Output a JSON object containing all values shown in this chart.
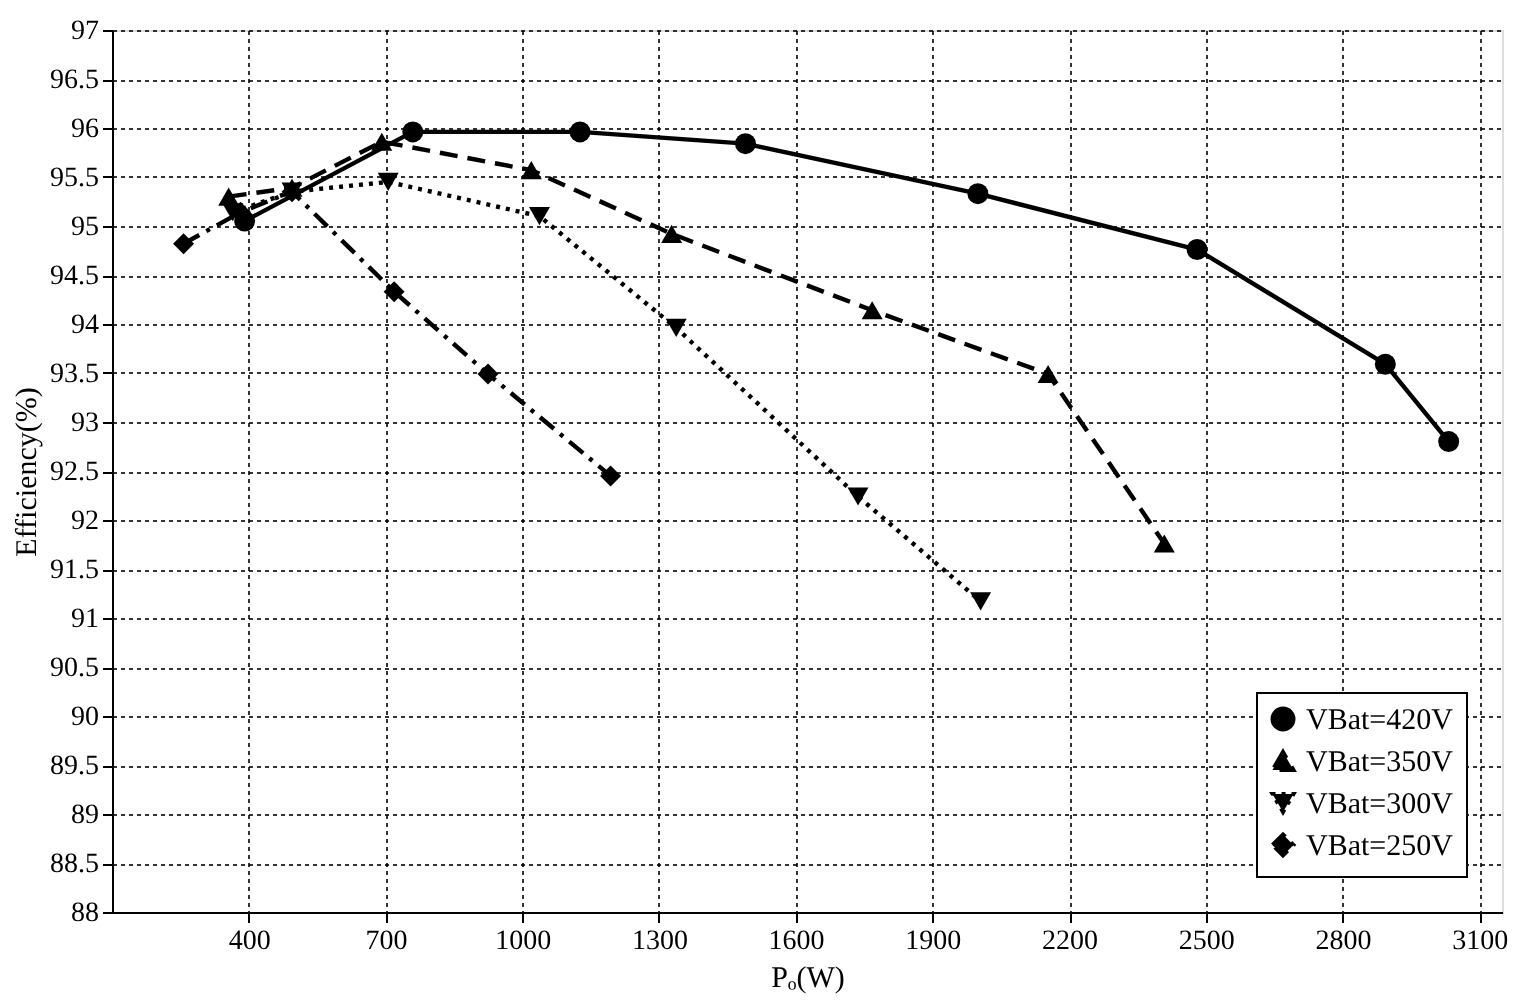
{
  "chart_data": {
    "type": "line",
    "xlabel": "Pₒ(W)",
    "ylabel": "Efficiency(%)",
    "xlim": [
      100,
      3150
    ],
    "xticks": [
      400,
      700,
      1000,
      1300,
      1600,
      1900,
      2200,
      2500,
      2800,
      3100
    ],
    "ylim": [
      88,
      97
    ],
    "yticks": [
      88,
      88.5,
      89,
      89.5,
      90,
      90.5,
      91,
      91.5,
      92,
      92.5,
      93,
      93.5,
      94,
      94.5,
      95,
      95.5,
      96,
      96.5,
      97
    ],
    "grid": true,
    "legend": "bottom right",
    "series": [
      {
        "name": "VBat=420V",
        "color": "#000000",
        "marker": "circle",
        "line_style": "solid",
        "x": [
          391,
          760,
          1127,
          1490,
          2000,
          2481,
          2894,
          3033
        ],
        "values": [
          95.05,
          95.96,
          95.96,
          95.84,
          95.33,
          94.76,
          93.59,
          92.8
        ]
      },
      {
        "name": "VBat=350V",
        "color": "#000000",
        "marker": "triangle",
        "line_style": "dashed",
        "x": [
          356,
          495,
          692,
          1020,
          1328,
          1768,
          2154,
          2409
        ],
        "values": [
          95.3,
          95.39,
          95.86,
          95.57,
          94.92,
          94.14,
          93.49,
          91.76
        ]
      },
      {
        "name": "VBat=300V",
        "color": "#000000",
        "marker": "triangle-down",
        "line_style": "dotted",
        "x": [
          365,
          495,
          706,
          1038,
          1338,
          1737,
          2006
        ],
        "values": [
          95.14,
          95.35,
          95.45,
          95.1,
          93.96,
          92.24,
          91.17
        ]
      },
      {
        "name": "VBat=250V",
        "color": "#000000",
        "marker": "diamond",
        "line_style": "dashdot",
        "x": [
          257,
          382,
          495,
          719,
          925,
          1194
        ],
        "values": [
          94.82,
          95.14,
          95.35,
          94.33,
          93.49,
          92.45
        ]
      }
    ]
  }
}
